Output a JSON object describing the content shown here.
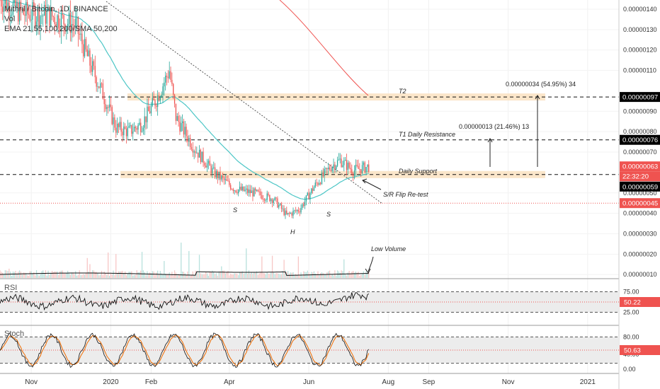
{
  "legend": {
    "symbol": "Mithril / Bitcoin, 1D, BINANCE",
    "volume": "Vol",
    "ma": "EMA 21,55,100,200/SMA 50,200"
  },
  "annotations": {
    "t2": "T2",
    "t1": "T1 Daily Resistance",
    "support": "Daily Support",
    "sr_flip": "S/R Flip Re-test",
    "low_volume": "Low Volume",
    "s_left": "S",
    "head": "H",
    "s_right": "S",
    "target_big": "0.00000034 (54.95%) 34",
    "target_small": "0.00000013 (21.46%) 13"
  },
  "price_axis": {
    "ticks": [
      "0.00000140",
      "0.00000130",
      "0.00000120",
      "0.00000110",
      "0.00000090",
      "0.00000080",
      "0.00000070",
      "0.00000050",
      "0.00000040",
      "0.00000030",
      "0.00000020",
      "0.00000010"
    ],
    "tags": {
      "t2": "0.00000097",
      "t1": "0.00000076",
      "current": "0.00000063",
      "countdown": "22:32:20",
      "support": "0.00000059",
      "red_line": "0.00000045"
    }
  },
  "rsi": {
    "label": "RSI",
    "upper": "75.00",
    "lower": "25.00",
    "value": "50.22"
  },
  "stoch": {
    "label": "Stoch",
    "upper": "80.00",
    "mid": "40.00",
    "lower": "0.00",
    "value": "50.63"
  },
  "time_axis": [
    "Nov",
    "2020",
    "Feb",
    "Apr",
    "Jun",
    "Aug",
    "Sep",
    "Nov",
    "2021"
  ],
  "colors": {
    "bull": "#26a69a",
    "bear": "#ef5350",
    "ema": "#4dc6c6",
    "sma200": "#ef5350",
    "zone": "#fbe3c4",
    "tag_black": "#000000",
    "tag_red": "#ef5350"
  },
  "chart_data": {
    "type": "candlestick",
    "x_range": [
      "2019-10-08",
      "2021-01-25"
    ],
    "y_range": [
      8e-08,
      1.445e-06
    ],
    "levels": {
      "t2": 9.7e-07,
      "t1": 7.6e-07,
      "support": 5.9e-07,
      "red": 4.5e-07
    },
    "close_path": [
      [
        "2019-10-08",
        1.45e-06
      ],
      [
        "2019-10-25",
        1.38e-06
      ],
      [
        "2019-11-15",
        1.37e-06
      ],
      [
        "2019-12-05",
        1.32e-06
      ],
      [
        "2019-12-15",
        1.15e-06
      ],
      [
        "2019-12-25",
        1e-06
      ],
      [
        "2020-01-05",
        8.2e-07
      ],
      [
        "2020-01-15",
        8e-07
      ],
      [
        "2020-01-25",
        8.4e-07
      ],
      [
        "2020-02-05",
        9.6e-07
      ],
      [
        "2020-02-15",
        1.1e-06
      ],
      [
        "2020-02-20",
        8.7e-07
      ],
      [
        "2020-03-05",
        7.2e-07
      ],
      [
        "2020-03-20",
        6e-07
      ],
      [
        "2020-04-05",
        5.2e-07
      ],
      [
        "2020-04-20",
        5e-07
      ],
      [
        "2020-05-05",
        4.7e-07
      ],
      [
        "2020-05-15",
        3.9e-07
      ],
      [
        "2020-05-25",
        4.2e-07
      ],
      [
        "2020-06-05",
        5.3e-07
      ],
      [
        "2020-06-18",
        6.3e-07
      ],
      [
        "2020-06-25",
        6.6e-07
      ],
      [
        "2020-07-05",
        6.1e-07
      ],
      [
        "2020-07-17",
        6.3e-07
      ]
    ]
  }
}
